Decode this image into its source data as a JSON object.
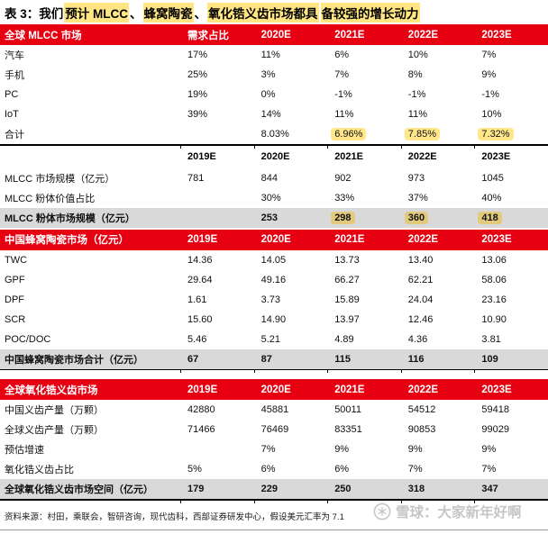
{
  "title": {
    "segments": [
      {
        "text": "表 3：我们",
        "highlight": false
      },
      {
        "text": "预计 MLCC",
        "highlight": true
      },
      {
        "text": "、",
        "highlight": false
      },
      {
        "text": "蜂窝陶瓷",
        "highlight": true
      },
      {
        "text": "、",
        "highlight": false
      },
      {
        "text": "氧化锆义齿市场都具",
        "highlight": true
      },
      {
        "text": "备较强的增长动力",
        "highlight": true
      }
    ]
  },
  "colors": {
    "header_red": "#e60012",
    "title_highlight": "#ffe682",
    "cell_highlight_yellow": "#ffe78a",
    "cell_highlight_tan": "#e2ca7c",
    "total_row_gray": "#d9d9d9",
    "watermark_gray": "#c6c6c6"
  },
  "table": {
    "sections": [
      {
        "header": {
          "style": "red",
          "label": "全球 MLCC 市场",
          "columns": [
            "需求占比",
            "2020E",
            "2021E",
            "2022E",
            "2023E"
          ]
        },
        "rows": [
          {
            "label": "汽车",
            "cells": [
              {
                "t": "17%"
              },
              {
                "t": "11%"
              },
              {
                "t": "6%"
              },
              {
                "t": "10%"
              },
              {
                "t": "7%"
              }
            ]
          },
          {
            "label": "手机",
            "cells": [
              {
                "t": "25%"
              },
              {
                "t": "3%"
              },
              {
                "t": "7%"
              },
              {
                "t": "8%"
              },
              {
                "t": "9%"
              }
            ]
          },
          {
            "label": "PC",
            "cells": [
              {
                "t": "19%"
              },
              {
                "t": "0%"
              },
              {
                "t": "-1%"
              },
              {
                "t": "-1%"
              },
              {
                "t": "-1%"
              }
            ]
          },
          {
            "label": "IoT",
            "cells": [
              {
                "t": "39%"
              },
              {
                "t": "14%"
              },
              {
                "t": "11%"
              },
              {
                "t": "11%"
              },
              {
                "t": "10%"
              }
            ]
          },
          {
            "label": "合计",
            "cells": [
              {
                "t": ""
              },
              {
                "t": "8.03%"
              },
              {
                "t": "6.96%",
                "hl": true
              },
              {
                "t": "7.85%",
                "hl": true
              },
              {
                "t": "7.32%",
                "hl": true
              }
            ]
          }
        ],
        "separator_after": true,
        "gap_after": 0
      },
      {
        "header": {
          "style": "plain",
          "label": "",
          "columns": [
            "2019E",
            "2020E",
            "2021E",
            "2022E",
            "2023E"
          ]
        },
        "rows": [
          {
            "label": "MLCC 市场规模（亿元）",
            "cells": [
              {
                "t": "781"
              },
              {
                "t": "844"
              },
              {
                "t": "902"
              },
              {
                "t": "973"
              },
              {
                "t": "1045"
              }
            ]
          },
          {
            "label": "MLCC 粉体价值占比",
            "cells": [
              {
                "t": ""
              },
              {
                "t": "30%"
              },
              {
                "t": "33%"
              },
              {
                "t": "37%"
              },
              {
                "t": "40%"
              }
            ]
          },
          {
            "label": "MLCC 粉体市场规模（亿元）",
            "gray": true,
            "cells": [
              {
                "t": ""
              },
              {
                "t": "253"
              },
              {
                "t": "298",
                "hl": true
              },
              {
                "t": "360",
                "hl": true
              },
              {
                "t": "418",
                "hl": true
              }
            ]
          }
        ],
        "separator_after": false,
        "gap_after": 2
      },
      {
        "header": {
          "style": "red",
          "label": "中国蜂窝陶瓷市场（亿元）",
          "columns": [
            "2019E",
            "2020E",
            "2021E",
            "2022E",
            "2023E"
          ]
        },
        "rows": [
          {
            "label": "TWC",
            "cells": [
              {
                "t": "14.36"
              },
              {
                "t": "14.05"
              },
              {
                "t": "13.73"
              },
              {
                "t": "13.40"
              },
              {
                "t": "13.06"
              }
            ]
          },
          {
            "label": "GPF",
            "cells": [
              {
                "t": "29.64"
              },
              {
                "t": "49.16"
              },
              {
                "t": "66.27"
              },
              {
                "t": "62.21"
              },
              {
                "t": "58.06"
              }
            ]
          },
          {
            "label": "DPF",
            "cells": [
              {
                "t": "1.61"
              },
              {
                "t": "3.73"
              },
              {
                "t": "15.89"
              },
              {
                "t": "24.04"
              },
              {
                "t": "23.16"
              }
            ]
          },
          {
            "label": "SCR",
            "cells": [
              {
                "t": "15.60"
              },
              {
                "t": "14.90"
              },
              {
                "t": "13.97"
              },
              {
                "t": "12.46"
              },
              {
                "t": "10.90"
              }
            ]
          },
          {
            "label": "POC/DOC",
            "cells": [
              {
                "t": "5.46"
              },
              {
                "t": "5.21"
              },
              {
                "t": "4.89"
              },
              {
                "t": "4.36"
              },
              {
                "t": "3.81"
              }
            ]
          },
          {
            "label": "中国蜂窝陶瓷市场合计（亿元）",
            "gray": true,
            "cells": [
              {
                "t": "67"
              },
              {
                "t": "87"
              },
              {
                "t": "115"
              },
              {
                "t": "116"
              },
              {
                "t": "109"
              }
            ]
          }
        ],
        "separator_after": true,
        "gap_after": 10
      },
      {
        "header": {
          "style": "red",
          "label": "全球氧化锆义齿市场",
          "columns": [
            "2019E",
            "2020E",
            "2021E",
            "2022E",
            "2023E"
          ]
        },
        "rows": [
          {
            "label": "中国义齿产量（万颗）",
            "cells": [
              {
                "t": "42880"
              },
              {
                "t": "45881"
              },
              {
                "t": "50011"
              },
              {
                "t": "54512"
              },
              {
                "t": "59418"
              }
            ]
          },
          {
            "label": "全球义齿产量（万颗）",
            "cells": [
              {
                "t": "71466"
              },
              {
                "t": "76469"
              },
              {
                "t": "83351"
              },
              {
                "t": "90853"
              },
              {
                "t": "99029"
              }
            ]
          },
          {
            "label": "预估增速",
            "cells": [
              {
                "t": ""
              },
              {
                "t": "7%"
              },
              {
                "t": "9%"
              },
              {
                "t": "9%"
              },
              {
                "t": "9%"
              }
            ]
          },
          {
            "label": "氧化锆义齿占比",
            "cells": [
              {
                "t": "5%"
              },
              {
                "t": "6%"
              },
              {
                "t": "6%"
              },
              {
                "t": "7%"
              },
              {
                "t": "7%"
              }
            ]
          },
          {
            "label": "全球氧化锆义齿市场空间（亿元）",
            "gray": true,
            "cells": [
              {
                "t": "179"
              },
              {
                "t": "229"
              },
              {
                "t": "250"
              },
              {
                "t": "318"
              },
              {
                "t": "347"
              }
            ]
          }
        ],
        "separator_after": true,
        "gap_after": 2
      }
    ]
  },
  "footer": {
    "source": "资料来源：村田，乘联会，智研咨询，现代齿科，西部证券研发中心，假设美元汇率为 7.1"
  },
  "watermark": {
    "icon": "snowball-logo",
    "text": "雪球：大家新年好啊"
  }
}
